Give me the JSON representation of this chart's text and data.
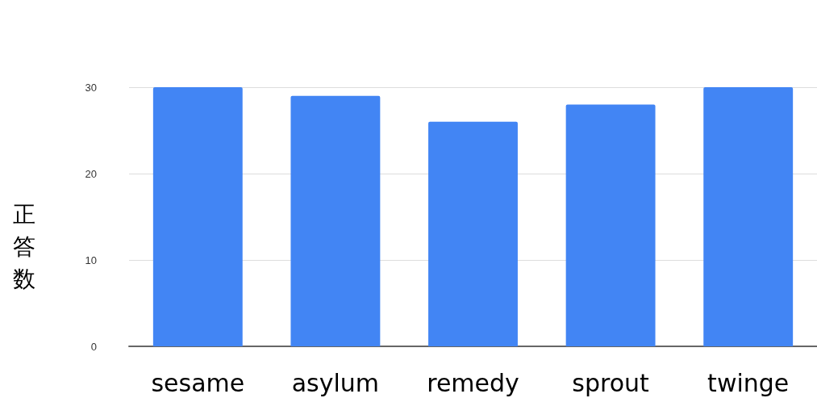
{
  "chart_data": {
    "type": "bar",
    "ylabel": "正答数",
    "categories": [
      "sesame",
      "asylum",
      "remedy",
      "sprout",
      "twinge"
    ],
    "values": [
      30,
      29,
      26,
      28,
      30
    ],
    "color": "#4285f4",
    "ylim": [
      0,
      30
    ],
    "yticks": [
      0,
      10,
      20,
      30
    ],
    "grid": "y"
  }
}
